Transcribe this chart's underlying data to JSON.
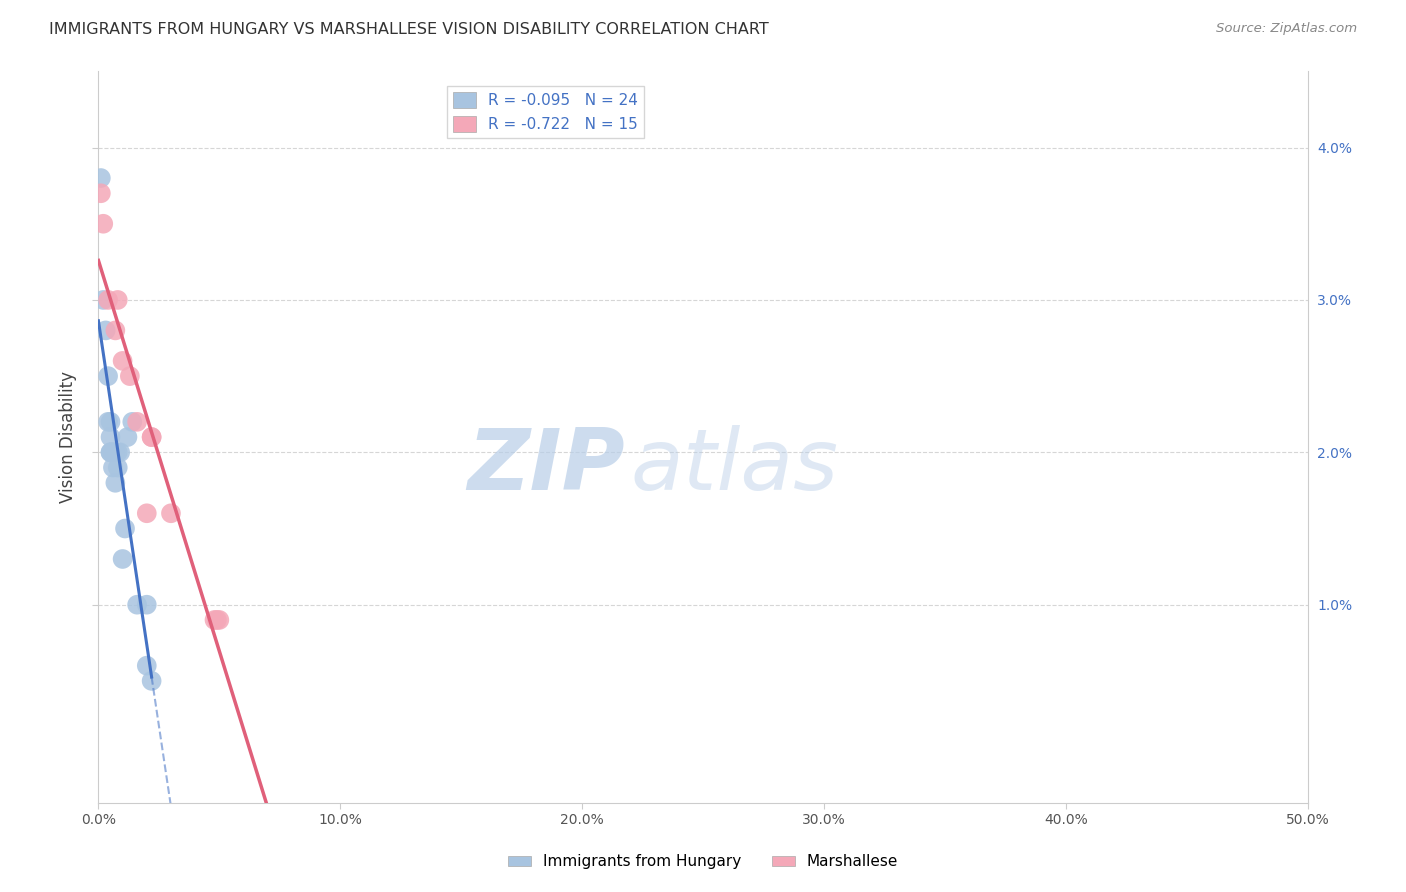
{
  "title": "IMMIGRANTS FROM HUNGARY VS MARSHALLESE VISION DISABILITY CORRELATION CHART",
  "source": "Source: ZipAtlas.com",
  "ylabel": "Vision Disability",
  "xmin": 0.0,
  "xmax": 0.5,
  "ymin": -0.003,
  "ymax": 0.045,
  "legend_hungary_r": "R = -0.095",
  "legend_hungary_n": "N = 24",
  "legend_marshallese_r": "R = -0.722",
  "legend_marshallese_n": "N = 15",
  "hungary_color": "#a8c4e0",
  "marshallese_color": "#f4a8b8",
  "hungary_line_color": "#4472c4",
  "marshallese_line_color": "#e0607a",
  "hungary_x": [
    0.001,
    0.002,
    0.003,
    0.004,
    0.004,
    0.005,
    0.005,
    0.005,
    0.005,
    0.006,
    0.006,
    0.007,
    0.007,
    0.008,
    0.008,
    0.009,
    0.01,
    0.011,
    0.012,
    0.014,
    0.016,
    0.02,
    0.02,
    0.022
  ],
  "hungary_y": [
    0.038,
    0.03,
    0.028,
    0.025,
    0.022,
    0.022,
    0.021,
    0.02,
    0.02,
    0.02,
    0.019,
    0.02,
    0.018,
    0.02,
    0.019,
    0.02,
    0.013,
    0.015,
    0.021,
    0.022,
    0.01,
    0.01,
    0.006,
    0.005
  ],
  "marshallese_x": [
    0.001,
    0.002,
    0.004,
    0.007,
    0.008,
    0.01,
    0.013,
    0.016,
    0.02,
    0.022,
    0.022,
    0.03,
    0.048,
    0.049,
    0.05
  ],
  "marshallese_y": [
    0.037,
    0.035,
    0.03,
    0.028,
    0.03,
    0.026,
    0.025,
    0.022,
    0.016,
    0.021,
    0.021,
    0.016,
    0.009,
    0.009,
    0.009
  ],
  "watermark_zip": "ZIP",
  "watermark_atlas": "atlas",
  "background_color": "#ffffff",
  "grid_color": "#cccccc"
}
